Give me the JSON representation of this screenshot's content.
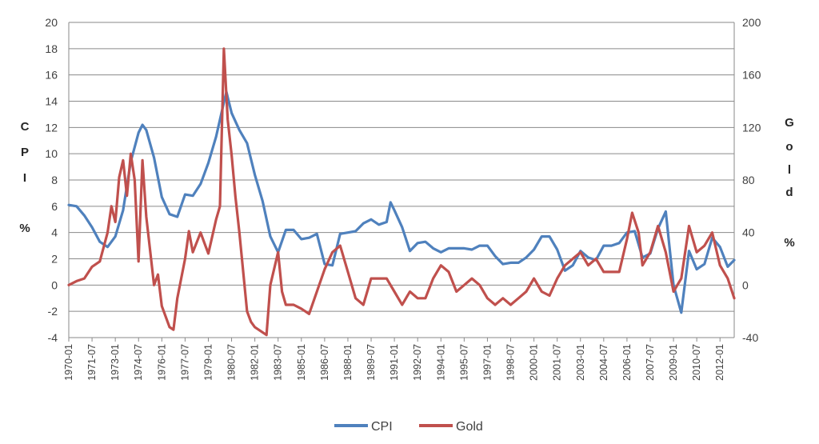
{
  "chart_data": {
    "type": "line",
    "title": "",
    "x_start": "1970-01",
    "x_end": "2012-12",
    "x_step": "1 month",
    "x_tick_labels": [
      "1970-01",
      "1971-07",
      "1973-01",
      "1974-07",
      "1976-01",
      "1977-07",
      "1979-01",
      "1980-07",
      "1982-01",
      "1983-07",
      "1985-01",
      "1986-07",
      "1988-01",
      "1989-07",
      "1991-01",
      "1992-07",
      "1994-01",
      "1995-07",
      "1997-01",
      "1998-07",
      "2000-01",
      "2001-07",
      "2003-01",
      "2004-07",
      "2006-01",
      "2007-07",
      "2009-01",
      "2010-07",
      "2012-01"
    ],
    "y_left": {
      "label_letters": [
        "C",
        "P",
        "I",
        "%"
      ],
      "ylim": [
        -4,
        20
      ],
      "ticks": [
        -4,
        -2,
        0,
        2,
        4,
        6,
        8,
        10,
        12,
        14,
        16,
        18,
        20
      ]
    },
    "y_right": {
      "label_letters": [
        "G",
        "o",
        "l",
        "d",
        "%"
      ],
      "ylim": [
        -40,
        200
      ],
      "ticks": [
        -40,
        0,
        40,
        80,
        120,
        160,
        200
      ]
    },
    "grid": "horizontal",
    "legend_position": "bottom",
    "series": [
      {
        "name": "CPI",
        "axis": "left",
        "color": "#4F81BD",
        "points": [
          [
            "1970-01",
            6.1
          ],
          [
            "1970-07",
            6.0
          ],
          [
            "1971-01",
            5.3
          ],
          [
            "1971-07",
            4.4
          ],
          [
            "1972-01",
            3.3
          ],
          [
            "1972-07",
            2.9
          ],
          [
            "1973-01",
            3.7
          ],
          [
            "1973-07",
            5.7
          ],
          [
            "1974-01",
            9.4
          ],
          [
            "1974-07",
            11.6
          ],
          [
            "1974-10",
            12.2
          ],
          [
            "1975-01",
            11.8
          ],
          [
            "1975-07",
            9.7
          ],
          [
            "1976-01",
            6.7
          ],
          [
            "1976-07",
            5.4
          ],
          [
            "1977-01",
            5.2
          ],
          [
            "1977-07",
            6.9
          ],
          [
            "1978-01",
            6.8
          ],
          [
            "1978-07",
            7.7
          ],
          [
            "1979-01",
            9.3
          ],
          [
            "1979-07",
            11.3
          ],
          [
            "1980-01",
            13.9
          ],
          [
            "1980-03",
            14.7
          ],
          [
            "1980-07",
            13.1
          ],
          [
            "1981-01",
            11.8
          ],
          [
            "1981-07",
            10.8
          ],
          [
            "1982-01",
            8.4
          ],
          [
            "1982-07",
            6.4
          ],
          [
            "1983-01",
            3.7
          ],
          [
            "1983-07",
            2.5
          ],
          [
            "1984-01",
            4.2
          ],
          [
            "1984-07",
            4.2
          ],
          [
            "1985-01",
            3.5
          ],
          [
            "1985-07",
            3.6
          ],
          [
            "1986-01",
            3.9
          ],
          [
            "1986-07",
            1.6
          ],
          [
            "1987-01",
            1.5
          ],
          [
            "1987-07",
            3.9
          ],
          [
            "1988-01",
            4.0
          ],
          [
            "1988-07",
            4.1
          ],
          [
            "1989-01",
            4.7
          ],
          [
            "1989-07",
            5.0
          ],
          [
            "1990-01",
            4.6
          ],
          [
            "1990-07",
            4.8
          ],
          [
            "1990-10",
            6.3
          ],
          [
            "1991-01",
            5.7
          ],
          [
            "1991-07",
            4.4
          ],
          [
            "1992-01",
            2.6
          ],
          [
            "1992-07",
            3.2
          ],
          [
            "1993-01",
            3.3
          ],
          [
            "1993-07",
            2.8
          ],
          [
            "1994-01",
            2.5
          ],
          [
            "1994-07",
            2.8
          ],
          [
            "1995-01",
            2.8
          ],
          [
            "1995-07",
            2.8
          ],
          [
            "1996-01",
            2.7
          ],
          [
            "1996-07",
            3.0
          ],
          [
            "1997-01",
            3.0
          ],
          [
            "1997-07",
            2.2
          ],
          [
            "1998-01",
            1.6
          ],
          [
            "1998-07",
            1.7
          ],
          [
            "1999-01",
            1.7
          ],
          [
            "1999-07",
            2.1
          ],
          [
            "2000-01",
            2.7
          ],
          [
            "2000-07",
            3.7
          ],
          [
            "2001-01",
            3.7
          ],
          [
            "2001-07",
            2.7
          ],
          [
            "2002-01",
            1.1
          ],
          [
            "2002-07",
            1.5
          ],
          [
            "2003-01",
            2.6
          ],
          [
            "2003-07",
            2.1
          ],
          [
            "2004-01",
            1.9
          ],
          [
            "2004-07",
            3.0
          ],
          [
            "2005-01",
            3.0
          ],
          [
            "2005-07",
            3.2
          ],
          [
            "2006-01",
            4.0
          ],
          [
            "2006-07",
            4.1
          ],
          [
            "2007-01",
            2.1
          ],
          [
            "2007-07",
            2.4
          ],
          [
            "2008-01",
            4.3
          ],
          [
            "2008-07",
            5.6
          ],
          [
            "2009-01",
            0.0
          ],
          [
            "2009-07",
            -2.1
          ],
          [
            "2010-01",
            2.6
          ],
          [
            "2010-07",
            1.2
          ],
          [
            "2011-01",
            1.6
          ],
          [
            "2011-07",
            3.6
          ],
          [
            "2012-01",
            2.9
          ],
          [
            "2012-07",
            1.4
          ],
          [
            "2012-12",
            1.9
          ]
        ]
      },
      {
        "name": "Gold",
        "axis": "right",
        "color": "#C0504D",
        "points": [
          [
            "1970-01",
            0
          ],
          [
            "1970-07",
            3
          ],
          [
            "1971-01",
            5
          ],
          [
            "1971-07",
            14
          ],
          [
            "1972-01",
            18
          ],
          [
            "1972-07",
            40
          ],
          [
            "1972-10",
            60
          ],
          [
            "1973-01",
            48
          ],
          [
            "1973-04",
            82
          ],
          [
            "1973-07",
            95
          ],
          [
            "1973-10",
            68
          ],
          [
            "1974-01",
            100
          ],
          [
            "1974-04",
            80
          ],
          [
            "1974-07",
            18
          ],
          [
            "1974-10",
            95
          ],
          [
            "1975-01",
            52
          ],
          [
            "1975-07",
            0
          ],
          [
            "1975-10",
            8
          ],
          [
            "1976-01",
            -16
          ],
          [
            "1976-07",
            -32
          ],
          [
            "1976-10",
            -34
          ],
          [
            "1977-01",
            -10
          ],
          [
            "1977-07",
            20
          ],
          [
            "1977-10",
            41
          ],
          [
            "1978-01",
            25
          ],
          [
            "1978-07",
            40
          ],
          [
            "1978-10",
            32
          ],
          [
            "1979-01",
            24
          ],
          [
            "1979-07",
            50
          ],
          [
            "1979-10",
            60
          ],
          [
            "1980-01",
            180
          ],
          [
            "1980-04",
            126
          ],
          [
            "1980-07",
            99
          ],
          [
            "1980-10",
            67
          ],
          [
            "1981-01",
            40
          ],
          [
            "1981-07",
            -20
          ],
          [
            "1981-10",
            -28
          ],
          [
            "1982-01",
            -32
          ],
          [
            "1982-07",
            -36
          ],
          [
            "1982-10",
            -38
          ],
          [
            "1983-01",
            0
          ],
          [
            "1983-07",
            25
          ],
          [
            "1983-10",
            -5
          ],
          [
            "1984-01",
            -15
          ],
          [
            "1984-07",
            -15
          ],
          [
            "1985-01",
            -18
          ],
          [
            "1985-07",
            -22
          ],
          [
            "1986-01",
            -5
          ],
          [
            "1986-07",
            12
          ],
          [
            "1987-01",
            25
          ],
          [
            "1987-07",
            30
          ],
          [
            "1988-01",
            10
          ],
          [
            "1988-07",
            -10
          ],
          [
            "1989-01",
            -15
          ],
          [
            "1989-07",
            5
          ],
          [
            "1990-01",
            5
          ],
          [
            "1990-07",
            5
          ],
          [
            "1991-01",
            -5
          ],
          [
            "1991-07",
            -15
          ],
          [
            "1992-01",
            -5
          ],
          [
            "1992-07",
            -10
          ],
          [
            "1993-01",
            -10
          ],
          [
            "1993-07",
            5
          ],
          [
            "1994-01",
            15
          ],
          [
            "1994-07",
            10
          ],
          [
            "1995-01",
            -5
          ],
          [
            "1995-07",
            0
          ],
          [
            "1996-01",
            5
          ],
          [
            "1996-07",
            0
          ],
          [
            "1997-01",
            -10
          ],
          [
            "1997-07",
            -15
          ],
          [
            "1998-01",
            -10
          ],
          [
            "1998-07",
            -15
          ],
          [
            "1999-01",
            -10
          ],
          [
            "1999-07",
            -5
          ],
          [
            "2000-01",
            5
          ],
          [
            "2000-07",
            -5
          ],
          [
            "2001-01",
            -8
          ],
          [
            "2001-07",
            5
          ],
          [
            "2002-01",
            15
          ],
          [
            "2002-07",
            20
          ],
          [
            "2003-01",
            25
          ],
          [
            "2003-07",
            15
          ],
          [
            "2004-01",
            20
          ],
          [
            "2004-07",
            10
          ],
          [
            "2005-01",
            10
          ],
          [
            "2005-07",
            10
          ],
          [
            "2006-01",
            35
          ],
          [
            "2006-05",
            55
          ],
          [
            "2006-10",
            40
          ],
          [
            "2007-01",
            15
          ],
          [
            "2007-07",
            25
          ],
          [
            "2008-01",
            45
          ],
          [
            "2008-07",
            25
          ],
          [
            "2009-01",
            -5
          ],
          [
            "2009-07",
            5
          ],
          [
            "2010-01",
            45
          ],
          [
            "2010-07",
            25
          ],
          [
            "2011-01",
            30
          ],
          [
            "2011-07",
            40
          ],
          [
            "2012-01",
            15
          ],
          [
            "2012-07",
            5
          ],
          [
            "2012-12",
            -10
          ]
        ]
      }
    ]
  }
}
